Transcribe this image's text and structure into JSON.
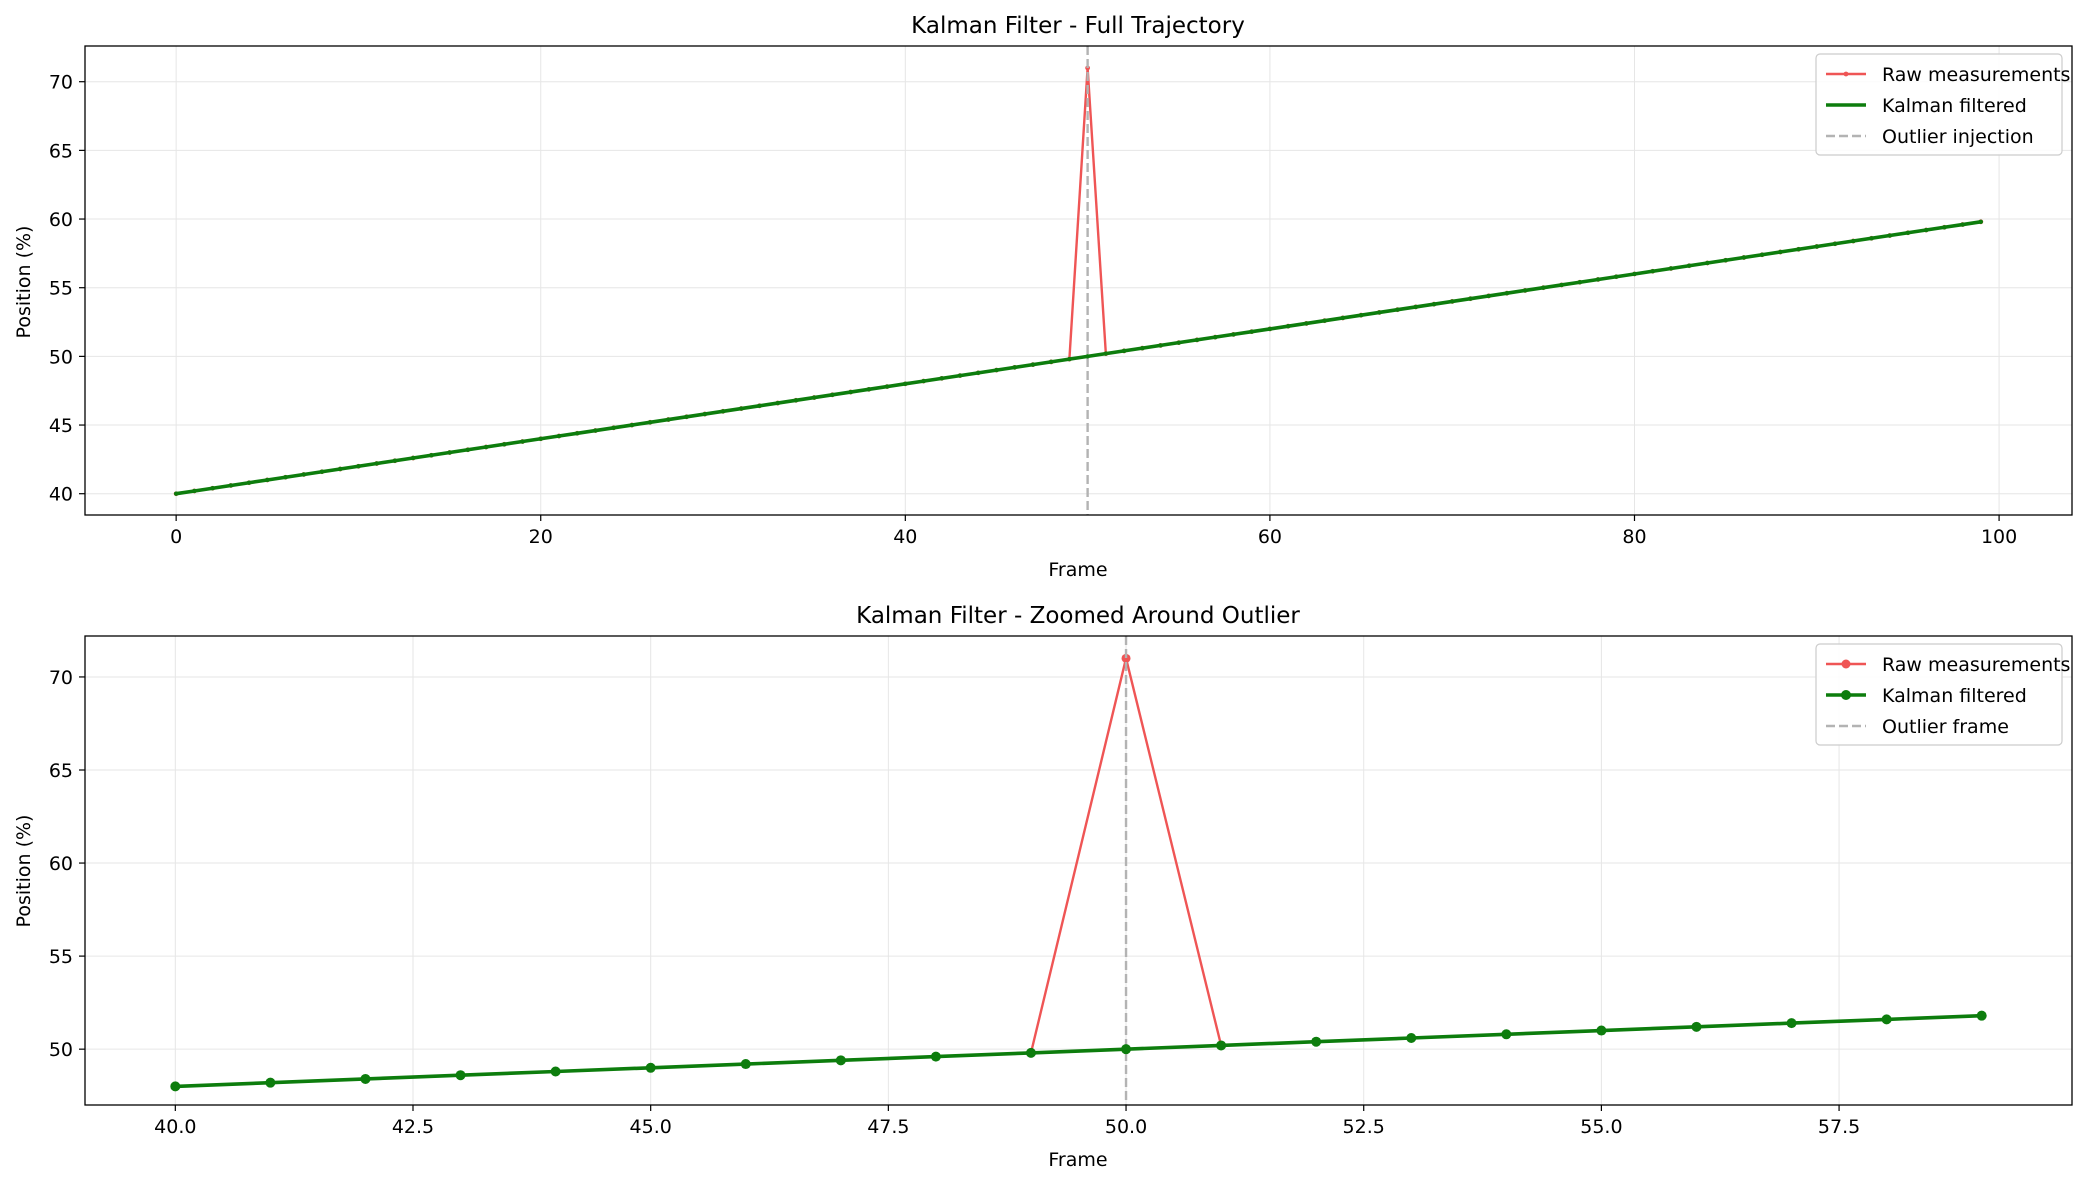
{
  "colors": {
    "raw": "#ef5555",
    "kalman": "#0d7d0d",
    "outlier_line": "#b3b3b3",
    "grid": "#e6e6e6",
    "axes": "#000000"
  },
  "chart_data": [
    {
      "type": "line",
      "title": "Kalman Filter - Full Trajectory",
      "xlabel": "Frame",
      "ylabel": "Position (%)",
      "xlim": [
        -5,
        104
      ],
      "ylim": [
        38.45,
        72.6
      ],
      "xticks": [
        0,
        20,
        40,
        60,
        80,
        100
      ],
      "xtick_labels": [
        "0",
        "20",
        "40",
        "60",
        "80",
        "100"
      ],
      "yticks": [
        40,
        45,
        50,
        55,
        60,
        65,
        70
      ],
      "ytick_labels": [
        "40",
        "45",
        "50",
        "55",
        "60",
        "65",
        "70"
      ],
      "grid": true,
      "legend_position": "top-right",
      "raw": {
        "name": "Raw measurements",
        "x_start": 0,
        "x_end": 99,
        "y_start": 40.0,
        "y_step": 0.2,
        "outliers": [
          {
            "x": 50,
            "y": 71.0
          }
        ]
      },
      "kalman": {
        "name": "Kalman filtered",
        "x_start": 0,
        "x_end": 99,
        "y_start": 40.0,
        "y_step": 0.2
      },
      "vline": {
        "name": "Outlier injection",
        "x": 50
      },
      "markers": false
    },
    {
      "type": "line",
      "title": "Kalman Filter - Zoomed Around Outlier",
      "xlabel": "Frame",
      "ylabel": "Position (%)",
      "xlim": [
        39.05,
        59.95
      ],
      "ylim": [
        47.0,
        72.2
      ],
      "xticks": [
        40,
        42.5,
        45,
        47.5,
        50,
        52.5,
        55,
        57.5
      ],
      "xtick_labels": [
        "40.0",
        "42.5",
        "45.0",
        "47.5",
        "50.0",
        "52.5",
        "55.0",
        "57.5"
      ],
      "yticks": [
        50,
        55,
        60,
        65,
        70
      ],
      "ytick_labels": [
        "50",
        "55",
        "60",
        "65",
        "70"
      ],
      "grid": true,
      "legend_position": "top-right",
      "raw": {
        "name": "Raw measurements",
        "x_start": 40,
        "x_end": 59,
        "y_start": 48.0,
        "y_step": 0.2,
        "outliers": [
          {
            "x": 50,
            "y": 71.0
          }
        ]
      },
      "kalman": {
        "name": "Kalman filtered",
        "x_start": 40,
        "x_end": 59,
        "y_start": 48.0,
        "y_step": 0.2
      },
      "vline": {
        "name": "Outlier frame",
        "x": 50
      },
      "markers": true
    }
  ]
}
